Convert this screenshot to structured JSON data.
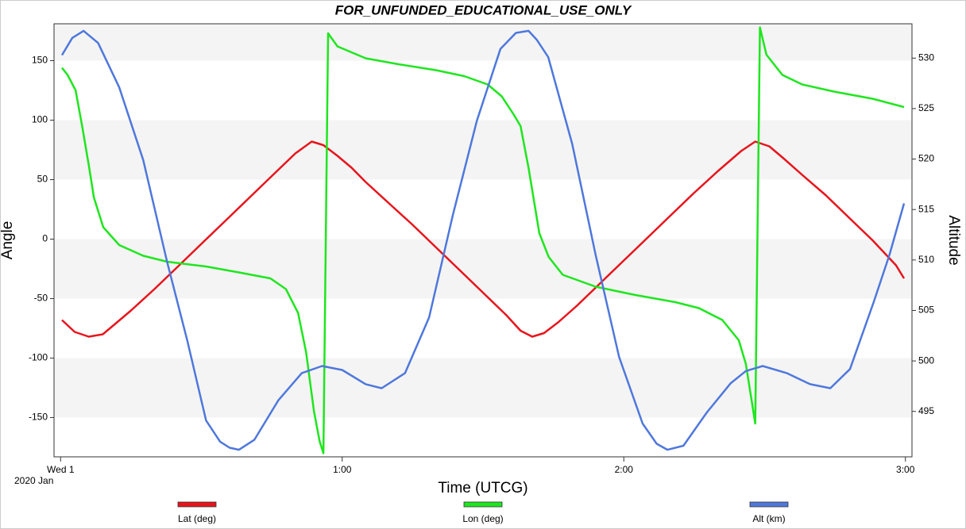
{
  "chart_data": {
    "type": "line",
    "title": "FOR_UNFUNDED_EDUCATIONAL_USE_ONLY",
    "x_label": "Time (UTCG)",
    "x_date_label": "2020 Jan",
    "y_label": "Angle",
    "y2_label": "Altitude",
    "xlim": [
      -1.4,
      181.4
    ],
    "xticks": [
      {
        "value": 0,
        "label": "Wed 1"
      },
      {
        "value": 60,
        "label": "1:00"
      },
      {
        "value": 120,
        "label": "2:00"
      },
      {
        "value": 180,
        "label": "3:00"
      }
    ],
    "ylim": [
      -183,
      181
    ],
    "yticks": [
      -150,
      -100,
      -50,
      0,
      50,
      100,
      150
    ],
    "y2lim": [
      490.5,
      533.4
    ],
    "y2ticks": [
      495,
      500,
      505,
      510,
      515,
      520,
      525,
      530
    ],
    "grid": true,
    "legend": "bottom",
    "series": [
      {
        "name": "Lat (deg)",
        "color": "#e8141c",
        "x": [
          0.3,
          3,
          6,
          9,
          12,
          15,
          20,
          25,
          30,
          35,
          40,
          45,
          50,
          53.5,
          56,
          59,
          62,
          65,
          70,
          75,
          80,
          85,
          90,
          95,
          98,
          100.5,
          103,
          106,
          110,
          115,
          120,
          125,
          130,
          135,
          140,
          145,
          148,
          151,
          154,
          158,
          163,
          168,
          173,
          178,
          179.7
        ],
        "values": [
          -68,
          -78,
          -82,
          -80,
          -70,
          -60,
          -42,
          -23,
          -4,
          15,
          34,
          53,
          72,
          82,
          79,
          70,
          60,
          48,
          30,
          12,
          -7,
          -26,
          -45,
          -64,
          -77,
          -82,
          -79,
          -70,
          -56,
          -37,
          -18,
          1,
          20,
          39,
          57,
          74,
          82,
          78,
          68,
          54,
          37,
          18,
          -1,
          -22,
          -33
        ]
      },
      {
        "name": "Lon (deg)",
        "color": "#1ee61e",
        "x": [
          0.3,
          1.5,
          3.2,
          4.6,
          6.1,
          7.1,
          9.1,
          12.5,
          17.6,
          22.7,
          31,
          38,
          44.7,
          48,
          50.6,
          52.3,
          54,
          55.2,
          56,
          57,
          59,
          65,
          72,
          80,
          86,
          91,
          94,
          96.5,
          98,
          99.7,
          102,
          104,
          107,
          114,
          122.5,
          131,
          136,
          141,
          144.5,
          146,
          148,
          149,
          150.4,
          153.8,
          158,
          164.8,
          173,
          179.7
        ],
        "values": [
          144,
          138,
          125,
          95,
          60,
          35,
          10,
          -5,
          -14,
          -19,
          -23,
          -28,
          -33,
          -42,
          -62,
          -95,
          -145,
          -170,
          -180,
          173,
          162,
          152,
          147,
          142,
          137,
          130,
          120,
          105,
          95,
          60,
          5,
          -15,
          -30,
          -40,
          -47,
          -53,
          -58,
          -68,
          -85,
          -105,
          -155,
          178,
          155,
          138,
          130,
          124,
          118,
          111
        ]
      },
      {
        "name": "Alt (km)",
        "color": "#4f78dc",
        "axis": "y2",
        "x": [
          0.3,
          2.5,
          4.9,
          8,
          12.5,
          17.6,
          22.7,
          27,
          31,
          34,
          36,
          38,
          41.3,
          46.4,
          51.4,
          55.7,
          60,
          65,
          68.4,
          73.4,
          78.5,
          83.6,
          88.7,
          93.7,
          97,
          99.7,
          101.5,
          103.9,
          109,
          114,
          119,
          124,
          127,
          129.3,
          132.7,
          137.7,
          142.8,
          146,
          149.6,
          154.7,
          159.7,
          164,
          168.2,
          173.3,
          176.6,
          179.7
        ],
        "values": [
          530.3,
          532.0,
          532.7,
          531.5,
          527.1,
          519.9,
          509.8,
          502.0,
          494.1,
          492.0,
          491.4,
          491.2,
          492.2,
          496.1,
          498.8,
          499.5,
          499.1,
          497.7,
          497.3,
          498.8,
          504.3,
          514.5,
          523.8,
          530.9,
          532.5,
          532.7,
          531.8,
          530.1,
          521.5,
          510.5,
          500.4,
          493.8,
          491.8,
          491.2,
          491.6,
          494.9,
          497.8,
          499.0,
          499.5,
          498.8,
          497.7,
          497.3,
          499.2,
          505.9,
          510.5,
          515.6
        ]
      }
    ]
  }
}
